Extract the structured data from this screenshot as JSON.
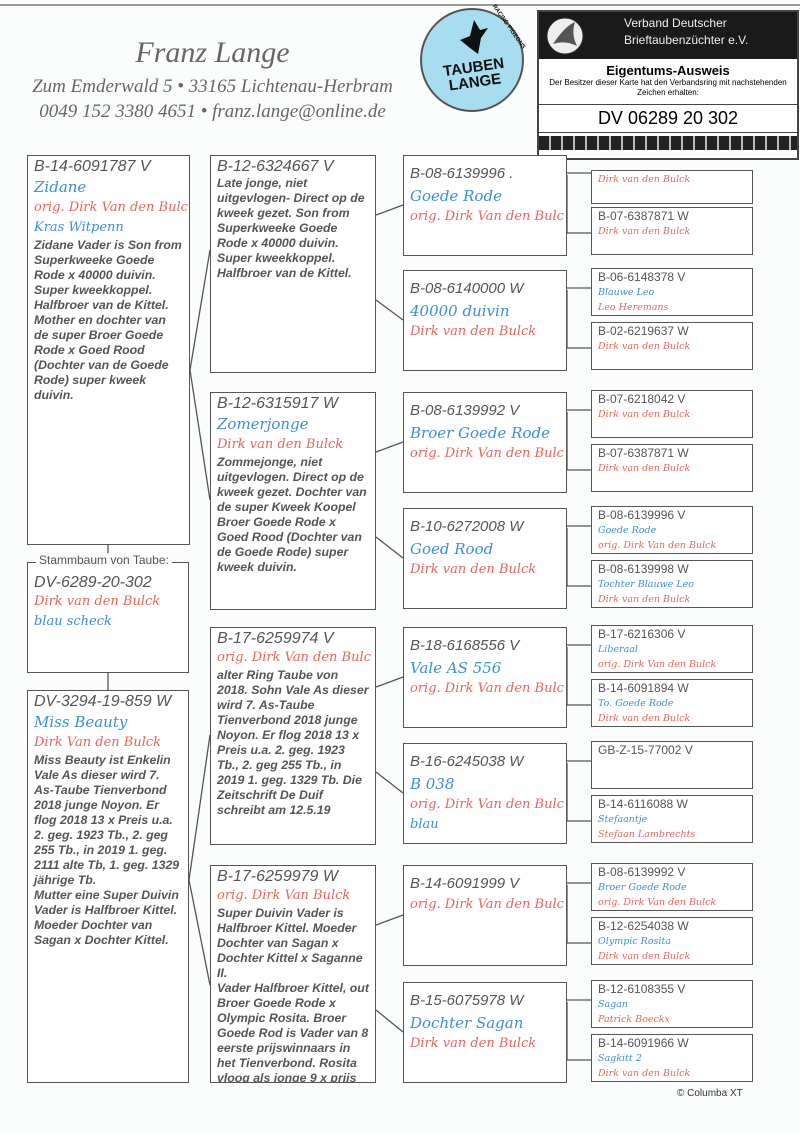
{
  "header": {
    "breeder": "Franz Lange",
    "address": "Zum Emderwald 5 • 33165 Lichtenau-Herbram",
    "contact": "0049 152 3380 4651 • franz.lange@online.de"
  },
  "sticker": {
    "text": "TAUBEN LANGE",
    "ring_text": "RACING PIGEONS",
    "background": "#a8dcef"
  },
  "card": {
    "org_line1": "Verband Deutscher",
    "org_line2": "Brieftaubenzüchter e.V.",
    "title": "Eigentums-Ausweis",
    "subtitle": "Der Besitzer dieser Karte hat den Verbandsring mit nachstehenden Zeichen erhalten:",
    "ring": "DV 06289 20 302"
  },
  "colors": {
    "name": "#3a8ee0",
    "owner": "#e8665a",
    "text": "#555555"
  },
  "subject": {
    "label": "Stammbaum von Taube:",
    "ring": "DV-6289-20-302",
    "owner": "Dirk van den Bulck",
    "color": "blau scheck"
  },
  "parents": [
    {
      "ring": "B-14-6091787 V",
      "name": "Zidane",
      "owner": "orig. Dirk Van den  Bulc",
      "color": "Kras Witpenn",
      "notes": "Zidane Vader is Son from Superkweeke Goede Rode x 40000 duivin. Super kweekkoppel. Halfbroer van de Kittel.\nMother en dochter van de super Broer Goede Rode x Goed Rood (Dochter van de Goede Rode) super kweek duivin."
    },
    {
      "ring": "DV-3294-19-859 W",
      "name": "Miss Beauty",
      "owner": "Dirk Van den Bulck",
      "notes": "Miss Beauty ist Enkelin Vale As dieser wird 7. As-Taube Tienverbond 2018 junge Noyon. Er flog 2018 13 x Preis u.a. 2. geg. 1923 Tb., 2. geg 255 Tb., in 2019 1. geg. 2111 alte Tb, 1. geg. 1329 jährige Tb.\nMutter eine Super Duivin Vader is Halfbroer Kittel. Moeder Dochter van Sagan x Dochter Kittel."
    }
  ],
  "grandparents": [
    {
      "ring": "B-12-6324667 V",
      "notes": "Late jonge, niet uitgevlogen- Direct op de kweek gezet. Son from Superkweeke Goede Rode x 40000 duivin. Super kweekkoppel. Halfbroer van de Kittel."
    },
    {
      "ring": "B-12-6315917 W",
      "name": "Zomerjonge",
      "owner": "Dirk van den Bulck",
      "notes": "Zommejonge, niet uitgevlogen. Direct op de kweek gezet. Dochter van de super Kweek Koopel Broer Goede Rode x Goed Rood (Dochter van de Goede Rode) super kweek duivin."
    },
    {
      "ring": "B-17-6259974 V",
      "owner": "orig. Dirk Van den  Bulc",
      "notes": "alter Ring Taube von 2018. Sohn Vale As dieser wird 7. As-Taube Tienverbond 2018 junge Noyon. Er flog 2018 13 x Preis u.a. 2. geg. 1923 Tb., 2. geg 255 Tb., in 2019 1. geg. 1329 Tb. Die Zeitschrift De Duif schreibt am 12.5.19"
    },
    {
      "ring": "B-17-6259979 W",
      "owner": "orig. Dirk Van Bulck",
      "notes": "Super Duivin Vader is Halfbroer Kittel.  Moeder Dochter van Sagan x Dochter Kittel x Saganne II.\nVader Halfbroer Kittel, out  Broer Goede Rode x Olympic Rosita. Broer Goede Rod is Vader van 8 eerste prijswinnaars in het Tienverbond. Rosita vloog als jonge 9 x prijs"
    }
  ],
  "great_grandparents": [
    {
      "ring": "B-08-6139996 .",
      "name": "Goede Rode",
      "owner": "orig. Dirk Van den  Bulc"
    },
    {
      "ring": "B-08-6140000 W",
      "name": "40000 duivin",
      "owner": "Dirk van den Bulck"
    },
    {
      "ring": "B-08-6139992 V",
      "name": "Broer Goede Rode",
      "owner": "orig. Dirk Van den  Bulc"
    },
    {
      "ring": "B-10-6272008 W",
      "name": "Goed Rood",
      "owner": "Dirk van den Bulck"
    },
    {
      "ring": "B-18-6168556 V",
      "name": "Vale AS 556",
      "owner": "orig. Dirk Van den  Bulc"
    },
    {
      "ring": "B-16-6245038 W",
      "name": "B 038",
      "owner": "orig. Dirk Van den  Bulc",
      "color": "blau"
    },
    {
      "ring": "B-14-6091999 V",
      "owner": "orig. Dirk Van den  Bulc"
    },
    {
      "ring": "B-15-6075978 W",
      "name": "Dochter Sagan",
      "owner": "Dirk van den Bulck"
    }
  ],
  "great_great_grandparents": [
    {
      "owner": "Dirk van den Bulck"
    },
    {
      "ring": "B-07-6387871 W",
      "owner": "Dirk van den Bulck"
    },
    {
      "ring": "B-06-6148378 V",
      "name": "Blauwe Leo",
      "owner": "Leo Heremans"
    },
    {
      "ring": "B-02-6219637 W",
      "owner": "Dirk van den Bulck"
    },
    {
      "ring": "B-07-6218042 V",
      "owner": "Dirk van den Bulck"
    },
    {
      "ring": "B-07-6387871 W",
      "owner": "Dirk van den Bulck"
    },
    {
      "ring": "B-08-6139996 V",
      "name": "Goede Rode",
      "owner": "orig. Dirk Van den  Bulck"
    },
    {
      "ring": "B-08-6139998 W",
      "name": "Tochter Blauwe Leo",
      "owner": "Dirk van den Bulck"
    },
    {
      "ring": "B-17-6216306 V",
      "name": "Liberaal",
      "owner": "orig. Dirk Van den  Bulck"
    },
    {
      "ring": "B-14-6091894 W",
      "name": "To. Goede Rode",
      "owner": "Dirk van den Bulck"
    },
    {
      "ring": "GB-Z-15-77002 V"
    },
    {
      "ring": "B-14-6116088 W",
      "name": "Stefaantje",
      "owner": "Stefaan Lambrechts"
    },
    {
      "ring": "B-08-6139992 V",
      "name": "Broer Goede Rode",
      "owner": "orig. Dirk Van den  Bulck"
    },
    {
      "ring": "B-12-6254038 W",
      "name": "Olympic Rosita",
      "owner": "Dirk van den Bulck"
    },
    {
      "ring": "B-12-6108355 V",
      "name": "Sagan",
      "owner": "Patrick Boeckx"
    },
    {
      "ring": "B-14-6091966 W",
      "name": "Sagkitt 2",
      "owner": "Dirk van den Bulck"
    }
  ],
  "footer": {
    "copyright": "© Columba XT"
  }
}
